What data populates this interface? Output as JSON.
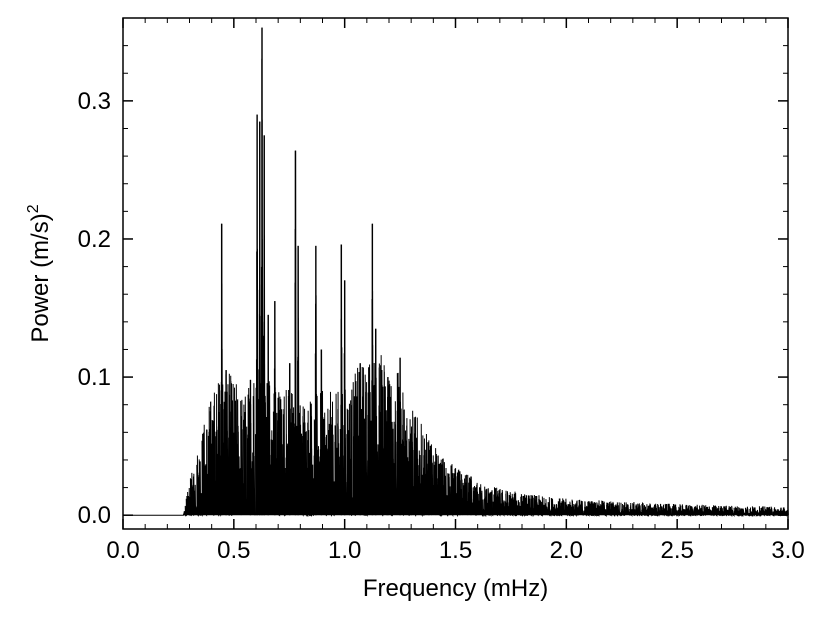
{
  "chart_data": {
    "type": "line",
    "title": "",
    "xlabel": "Frequency (mHz)",
    "ylabel_main": "Power (m/s)",
    "ylabel_superscript": "2",
    "xlim": [
      0.0,
      3.0
    ],
    "ylim": [
      -0.01,
      0.36
    ],
    "xticks": [
      {
        "value": 0.0,
        "label": "0.0"
      },
      {
        "value": 0.5,
        "label": "0.5"
      },
      {
        "value": 1.0,
        "label": "1.0"
      },
      {
        "value": 1.5,
        "label": "1.5"
      },
      {
        "value": 2.0,
        "label": "2.0"
      },
      {
        "value": 2.5,
        "label": "2.5"
      },
      {
        "value": 3.0,
        "label": "3.0"
      }
    ],
    "yticks": [
      {
        "value": 0.0,
        "label": "0.0"
      },
      {
        "value": 0.1,
        "label": "0.1"
      },
      {
        "value": 0.2,
        "label": "0.2"
      },
      {
        "value": 0.3,
        "label": "0.3"
      }
    ],
    "grid": false,
    "line_color": "#000000",
    "peaks": [
      {
        "x": 0.445,
        "y": 0.211
      },
      {
        "x": 0.465,
        "y": 0.105
      },
      {
        "x": 0.575,
        "y": 0.098
      },
      {
        "x": 0.605,
        "y": 0.29
      },
      {
        "x": 0.617,
        "y": 0.285
      },
      {
        "x": 0.627,
        "y": 0.353
      },
      {
        "x": 0.637,
        "y": 0.275
      },
      {
        "x": 0.655,
        "y": 0.145
      },
      {
        "x": 0.685,
        "y": 0.155
      },
      {
        "x": 0.752,
        "y": 0.11
      },
      {
        "x": 0.778,
        "y": 0.264
      },
      {
        "x": 0.79,
        "y": 0.195
      },
      {
        "x": 0.87,
        "y": 0.195
      },
      {
        "x": 0.895,
        "y": 0.12
      },
      {
        "x": 0.985,
        "y": 0.196
      },
      {
        "x": 1.0,
        "y": 0.17
      },
      {
        "x": 1.07,
        "y": 0.11
      },
      {
        "x": 1.125,
        "y": 0.211
      },
      {
        "x": 1.14,
        "y": 0.135
      },
      {
        "x": 1.195,
        "y": 0.1
      },
      {
        "x": 1.25,
        "y": 0.114
      },
      {
        "x": 1.3,
        "y": 0.058
      },
      {
        "x": 1.38,
        "y": 0.045
      },
      {
        "x": 1.47,
        "y": 0.03
      },
      {
        "x": 1.52,
        "y": 0.03
      },
      {
        "x": 1.57,
        "y": 0.028
      }
    ],
    "envelope": [
      {
        "x": 0.0,
        "y": 0.0
      },
      {
        "x": 0.27,
        "y": 0.0
      },
      {
        "x": 0.3,
        "y": 0.012
      },
      {
        "x": 0.35,
        "y": 0.03
      },
      {
        "x": 0.4,
        "y": 0.045
      },
      {
        "x": 0.45,
        "y": 0.055
      },
      {
        "x": 0.5,
        "y": 0.05
      },
      {
        "x": 0.55,
        "y": 0.045
      },
      {
        "x": 0.6,
        "y": 0.055
      },
      {
        "x": 0.7,
        "y": 0.05
      },
      {
        "x": 0.8,
        "y": 0.045
      },
      {
        "x": 0.9,
        "y": 0.045
      },
      {
        "x": 1.0,
        "y": 0.045
      },
      {
        "x": 1.1,
        "y": 0.06
      },
      {
        "x": 1.2,
        "y": 0.06
      },
      {
        "x": 1.3,
        "y": 0.04
      },
      {
        "x": 1.4,
        "y": 0.025
      },
      {
        "x": 1.5,
        "y": 0.018
      },
      {
        "x": 1.6,
        "y": 0.012
      },
      {
        "x": 1.8,
        "y": 0.008
      },
      {
        "x": 2.0,
        "y": 0.006
      },
      {
        "x": 2.5,
        "y": 0.004
      },
      {
        "x": 3.0,
        "y": 0.003
      }
    ]
  }
}
